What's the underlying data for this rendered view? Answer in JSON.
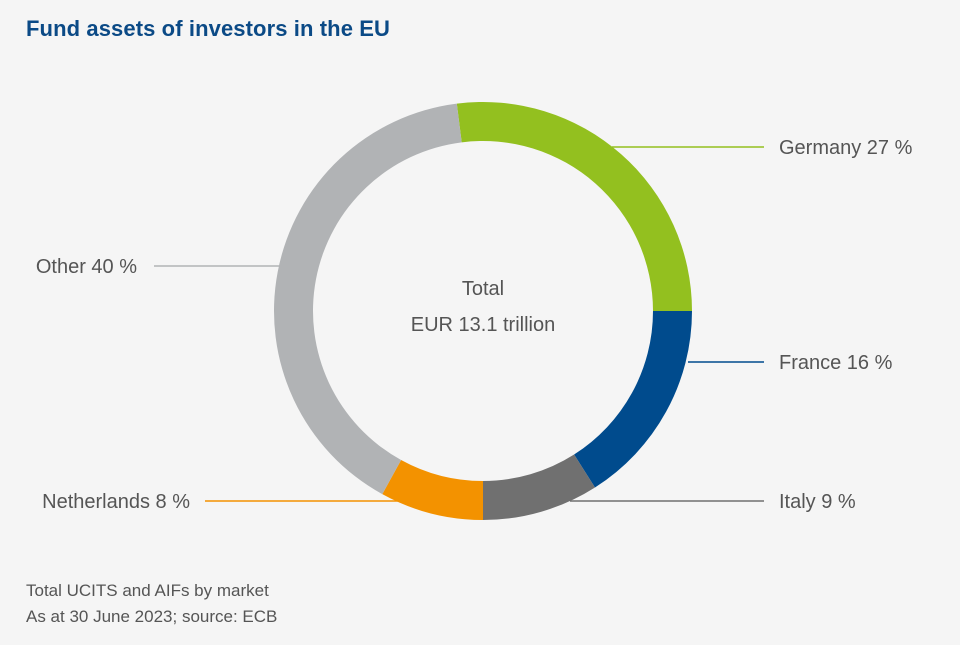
{
  "title": "Fund assets of investors in the EU",
  "footnote": {
    "line1": "Total UCITS and AIFs by market",
    "line2": "As at 30 June 2023; source: ECB"
  },
  "chart_data": {
    "type": "pie",
    "variant": "donut",
    "title": "Fund assets of investors in the EU",
    "center_label": {
      "line1": "Total",
      "line2": "EUR 13.1 trillion"
    },
    "unit": "%",
    "slices": [
      {
        "name": "Germany",
        "value": 27,
        "label": "Germany 27 %",
        "color": "#93c01f",
        "label_side": "right"
      },
      {
        "name": "France",
        "value": 16,
        "label": "France 16 %",
        "color": "#004b8d",
        "label_side": "right"
      },
      {
        "name": "Italy",
        "value": 9,
        "label": "Italy 9 %",
        "color": "#707070",
        "label_side": "right"
      },
      {
        "name": "Netherlands",
        "value": 8,
        "label": "Netherlands 8 %",
        "color": "#f39200",
        "label_side": "left"
      },
      {
        "name": "Other",
        "value": 40,
        "label": "Other 40 %",
        "color": "#b1b3b5",
        "label_side": "left"
      }
    ],
    "legend": "leader-line labels"
  }
}
